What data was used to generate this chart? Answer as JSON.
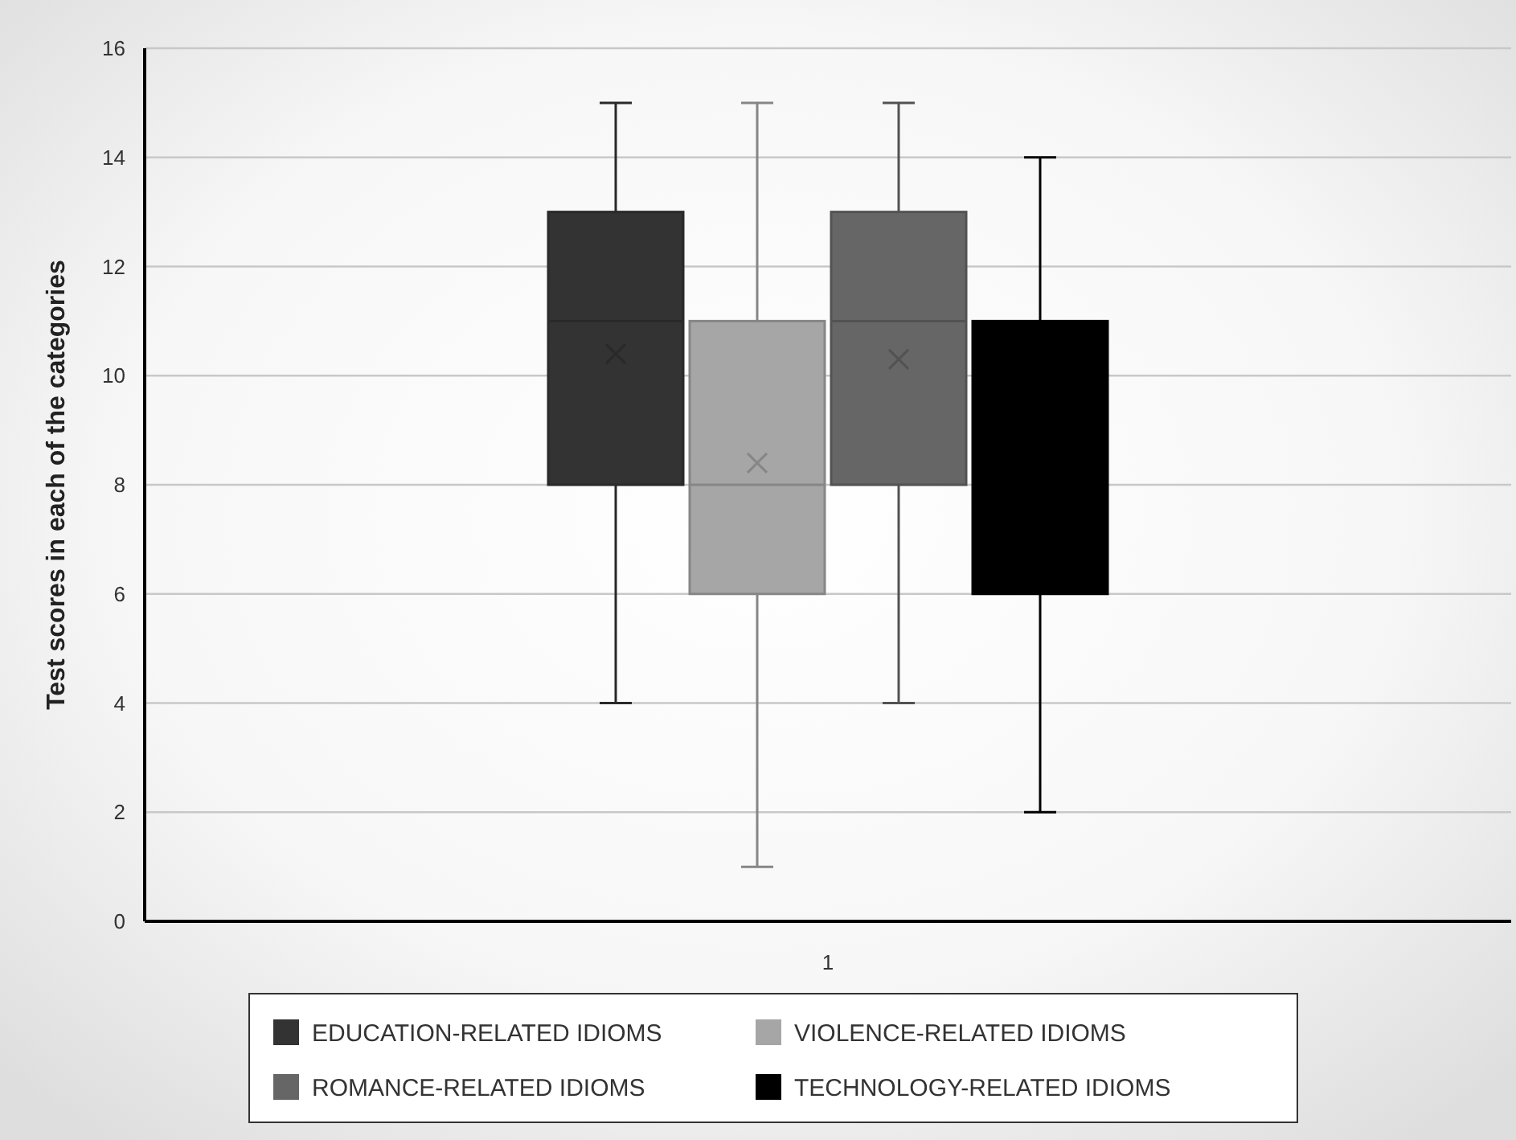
{
  "chart_data": {
    "type": "box",
    "ylabel": "Test scores in each of the categories",
    "categories": [
      "1"
    ],
    "ylim": [
      0,
      16
    ],
    "yticks": [
      0,
      2,
      4,
      6,
      8,
      10,
      12,
      14,
      16
    ],
    "grid": "y",
    "legend": "bottom",
    "series": [
      {
        "name": "EDUCATION-RELATED IDIOMS",
        "color": "#333333",
        "boxes": [
          {
            "low": 4,
            "q1": 8,
            "median": 11,
            "q3": 13,
            "high": 15,
            "mean": 10.4
          }
        ]
      },
      {
        "name": "VIOLENCE-RELATED IDIOMS",
        "color": "#a6a6a6",
        "boxes": [
          {
            "low": 1,
            "q1": 6,
            "median": 8,
            "q3": 11,
            "high": 15,
            "mean": 8.4
          }
        ]
      },
      {
        "name": "ROMANCE-RELATED IDIOMS",
        "color": "#666666",
        "boxes": [
          {
            "low": 4,
            "q1": 8,
            "median": 11,
            "q3": 13,
            "high": 15,
            "mean": 10.3
          }
        ]
      },
      {
        "name": "TECHNOLOGY-RELATED IDIOMS",
        "color": "#000000",
        "boxes": [
          {
            "low": 2,
            "q1": 6,
            "median": 8,
            "q3": 11,
            "high": 14
          }
        ]
      }
    ]
  }
}
